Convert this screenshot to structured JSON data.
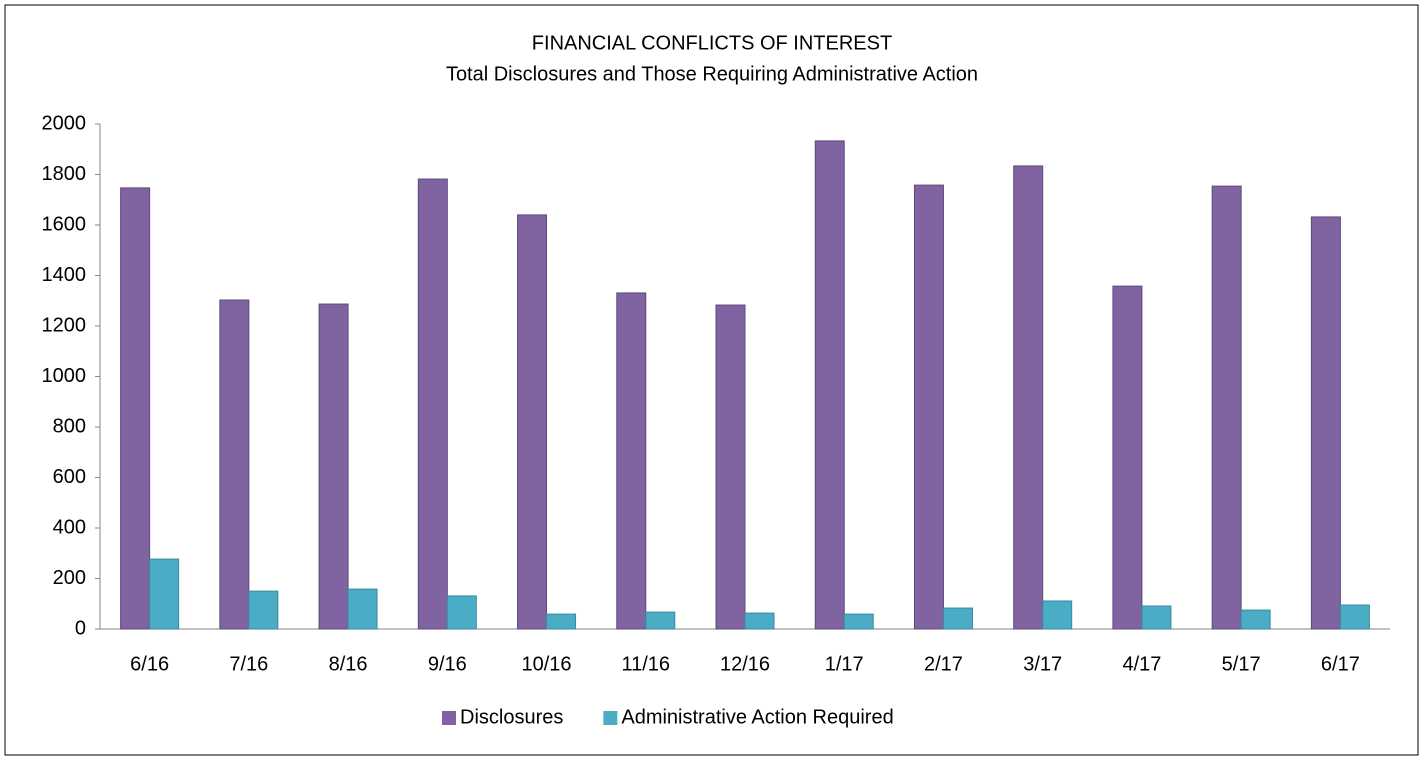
{
  "chart_data": {
    "type": "bar",
    "title": "FINANCIAL CONFLICTS OF INTEREST",
    "subtitle": "Total Disclosures and Those Requiring Administrative Action",
    "categories": [
      "6/16",
      "7/16",
      "8/16",
      "9/16",
      "10/16",
      "11/16",
      "12/16",
      "1/17",
      "2/17",
      "3/17",
      "4/17",
      "5/17",
      "6/17"
    ],
    "series": [
      {
        "name": "Disclosures",
        "color": "#8064a2",
        "values": [
          1747,
          1303,
          1287,
          1782,
          1640,
          1331,
          1283,
          1933,
          1758,
          1834,
          1358,
          1754,
          1632
        ]
      },
      {
        "name": "Administrative Action Required",
        "color": "#4bacc6",
        "values": [
          277,
          150,
          158,
          131,
          59,
          67,
          63,
          59,
          83,
          111,
          91,
          75,
          95
        ]
      }
    ],
    "ylim": [
      0,
      2000
    ],
    "yticks": [
      0,
      200,
      400,
      600,
      800,
      1000,
      1200,
      1400,
      1600,
      1800,
      2000
    ],
    "legend": "bottom"
  }
}
